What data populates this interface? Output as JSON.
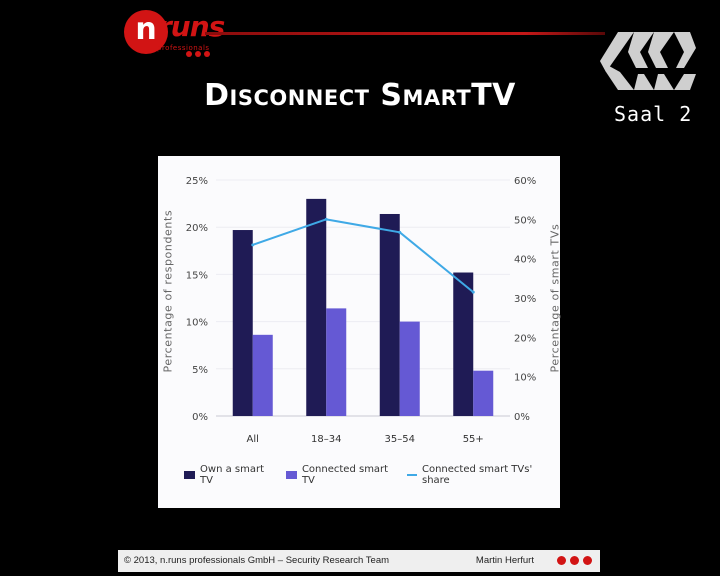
{
  "header": {
    "logo_mark": "n",
    "logo_word": "runs",
    "logo_sub": "professionals",
    "title": "Disconnect SmartTV",
    "room": "Saal 2"
  },
  "colors": {
    "brand_red": "#d21414",
    "series_own": "#1f1b55",
    "series_connected": "#6559d4",
    "series_share": "#3fa9e6"
  },
  "chart_data": {
    "type": "bar",
    "categories": [
      "All",
      "18–34",
      "35–54",
      "55+"
    ],
    "series": [
      {
        "name": "Own a smart TV",
        "type": "bar",
        "axis": "left",
        "values": [
          19.7,
          23.0,
          21.4,
          15.2
        ]
      },
      {
        "name": "Connected smart TV",
        "type": "bar",
        "axis": "left",
        "values": [
          8.6,
          11.4,
          10.0,
          4.8
        ]
      },
      {
        "name": "Connected smart TVs' share",
        "type": "line",
        "axis": "right",
        "values": [
          43.5,
          50.0,
          46.7,
          31.5
        ]
      }
    ],
    "ylabel": "Percentage of respondents",
    "y2label": "Percentage of smart TVs",
    "ylim": [
      0,
      25
    ],
    "y2lim": [
      0,
      60
    ],
    "yticks": [
      "0%",
      "5%",
      "10%",
      "15%",
      "20%",
      "25%"
    ],
    "y2ticks": [
      "0%",
      "10%",
      "20%",
      "30%",
      "40%",
      "50%",
      "60%"
    ],
    "legend_placement": "bottom",
    "grid": true
  },
  "footer": {
    "copyright": "© 2013, n.runs professionals GmbH – Security Research Team",
    "author": "Martin Herfurt"
  }
}
